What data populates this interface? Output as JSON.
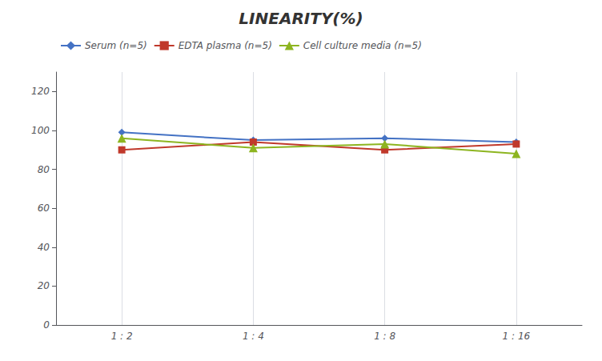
{
  "chart_data": {
    "type": "line",
    "title": "LINEARITY(%)",
    "categories": [
      "1 : 2",
      "1 : 4",
      "1 : 8",
      "1 : 16"
    ],
    "series": [
      {
        "name": "Serum (n=5)",
        "color": "#4472C4",
        "marker": "diamond",
        "values": [
          99,
          95,
          96,
          94
        ]
      },
      {
        "name": "EDTA plasma (n=5)",
        "color": "#C0392B",
        "marker": "square",
        "values": [
          90,
          94,
          90,
          93
        ]
      },
      {
        "name": "Cell culture media (n=5)",
        "color": "#8DB520",
        "marker": "triangle",
        "values": [
          96,
          91,
          93,
          88
        ]
      }
    ],
    "ylim": [
      0,
      130
    ],
    "yticks": [
      0,
      20,
      40,
      60,
      80,
      100,
      120
    ],
    "grid": "x",
    "legend": "upper left"
  }
}
